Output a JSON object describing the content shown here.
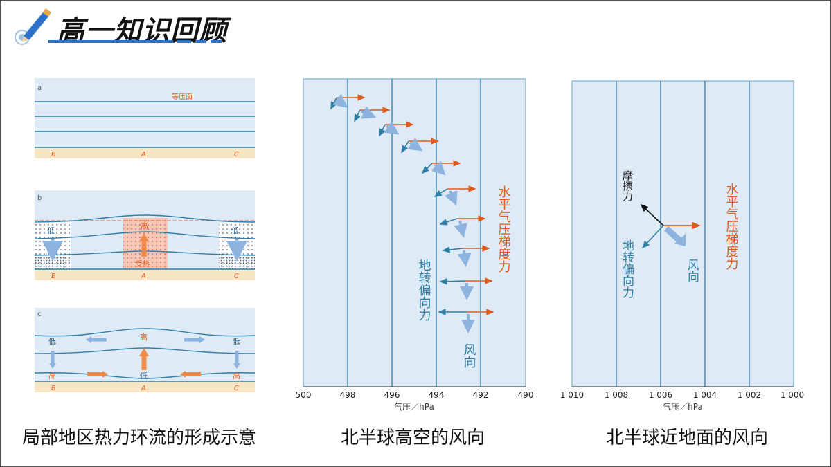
{
  "header": {
    "title": "高一知识回顾"
  },
  "panel_left": {
    "a": {
      "tag": "a",
      "isobar_label": "等压面",
      "B": "B",
      "A": "A",
      "C": "C"
    },
    "b": {
      "tag": "b",
      "low_left": "低",
      "high": "高",
      "low_right": "低",
      "heat": "受热",
      "B": "B",
      "A": "A",
      "C": "C"
    },
    "c": {
      "tag": "c",
      "high_top": "高",
      "low_top_left": "低",
      "low_top_right": "低",
      "high_bottom_left": "高",
      "low_bottom": "低",
      "high_bottom_right": "高",
      "B": "B",
      "A": "A",
      "C": "C"
    }
  },
  "panel_mid": {
    "ticks": [
      "500",
      "498",
      "496",
      "494",
      "492",
      "490"
    ],
    "axis_label": "气压／hPa",
    "pgf_label": "水平气压梯度力",
    "coriolis_label": "地转偏向力",
    "wind_label": "风向"
  },
  "panel_right": {
    "ticks": [
      "1 010",
      "1 008",
      "1 006",
      "1 004",
      "1 002",
      "1 000"
    ],
    "axis_label": "气压／hPa",
    "friction_label": "摩擦力",
    "coriolis_label": "地转偏向力",
    "wind_label": "风向",
    "pgf_label": "水平气压梯度力"
  },
  "captions": {
    "left": "局部地区热力环流的形成示意",
    "mid": "北半球高空的风向",
    "right": "北半球近地面的风向"
  },
  "colors": {
    "line": "#2e7ea8",
    "pgf": "#e05a1c",
    "wind": "#8cb4de",
    "panel_bg": "#deeaf6",
    "ground": "#f6e6c6",
    "heat": "#f7c7b5"
  }
}
